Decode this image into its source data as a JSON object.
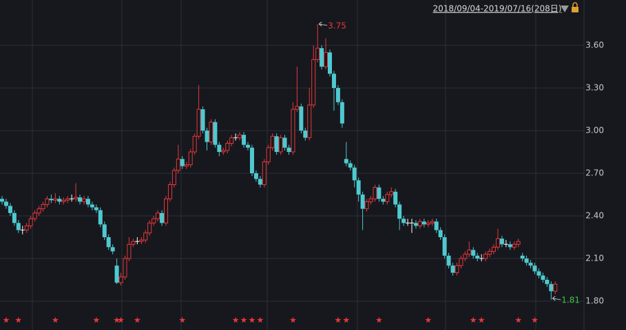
{
  "chart_data": {
    "type": "candlestick",
    "range_label": "2018/09/04-2019/07/16(208日)",
    "up_color": "#e8383d",
    "down_color": "#4fc9d0",
    "flat_color": "#ffffff",
    "grid": true,
    "ylim": [
      1.742,
      3.919
    ],
    "yticks": [
      {
        "value": 1.8,
        "label": "1.80"
      },
      {
        "value": 2.1,
        "label": "2.10"
      },
      {
        "value": 2.4,
        "label": "2.40"
      },
      {
        "value": 2.7,
        "label": "2.70"
      },
      {
        "value": 3.0,
        "label": "3.00"
      },
      {
        "value": 3.3,
        "label": "3.30"
      },
      {
        "value": 3.6,
        "label": "3.60"
      }
    ],
    "annotations": [
      {
        "value": 3.75,
        "color": "#e8383d"
      },
      {
        "value": 1.81,
        "color": "#3cc24a"
      }
    ],
    "star_indices": [
      1,
      4,
      13,
      23,
      28,
      29,
      33,
      44,
      57,
      59,
      61,
      63,
      71,
      82,
      84,
      92,
      104,
      115,
      117,
      126,
      130
    ],
    "candles": [
      [
        2.52,
        2.54,
        2.48,
        2.5
      ],
      [
        2.5,
        2.52,
        2.45,
        2.47
      ],
      [
        2.47,
        2.49,
        2.4,
        2.42
      ],
      [
        2.42,
        2.44,
        2.33,
        2.35
      ],
      [
        2.35,
        2.37,
        2.28,
        2.3
      ],
      [
        2.3,
        2.33,
        2.27,
        2.3
      ],
      [
        2.3,
        2.35,
        2.28,
        2.33
      ],
      [
        2.33,
        2.4,
        2.31,
        2.38
      ],
      [
        2.38,
        2.44,
        2.36,
        2.42
      ],
      [
        2.42,
        2.47,
        2.4,
        2.45
      ],
      [
        2.45,
        2.5,
        2.43,
        2.48
      ],
      [
        2.48,
        2.54,
        2.46,
        2.52
      ],
      [
        2.52,
        2.55,
        2.49,
        2.51
      ],
      [
        2.51,
        2.56,
        2.49,
        2.52
      ],
      [
        2.52,
        2.54,
        2.48,
        2.5
      ],
      [
        2.5,
        2.53,
        2.48,
        2.51
      ],
      [
        2.51,
        2.54,
        2.49,
        2.52
      ],
      [
        2.52,
        2.55,
        2.5,
        2.52
      ],
      [
        2.52,
        2.63,
        2.5,
        2.53
      ],
      [
        2.53,
        2.55,
        2.48,
        2.5
      ],
      [
        2.5,
        2.54,
        2.48,
        2.52
      ],
      [
        2.52,
        2.54,
        2.46,
        2.48
      ],
      [
        2.48,
        2.5,
        2.44,
        2.46
      ],
      [
        2.46,
        2.48,
        2.42,
        2.44
      ],
      [
        2.44,
        2.46,
        2.32,
        2.34
      ],
      [
        2.34,
        2.36,
        2.23,
        2.25
      ],
      [
        2.25,
        2.27,
        2.16,
        2.18
      ],
      [
        2.18,
        2.2,
        2.13,
        2.15
      ],
      [
        2.05,
        2.1,
        1.92,
        1.93
      ],
      [
        1.93,
        2.0,
        1.91,
        1.97
      ],
      [
        1.97,
        2.12,
        1.95,
        2.1
      ],
      [
        2.1,
        2.25,
        2.08,
        2.2
      ],
      [
        2.2,
        2.24,
        2.18,
        2.22
      ],
      [
        2.22,
        2.25,
        2.2,
        2.22
      ],
      [
        2.22,
        2.25,
        2.2,
        2.23
      ],
      [
        2.23,
        2.3,
        2.21,
        2.28
      ],
      [
        2.28,
        2.37,
        2.26,
        2.35
      ],
      [
        2.35,
        2.4,
        2.33,
        2.38
      ],
      [
        2.38,
        2.44,
        2.36,
        2.42
      ],
      [
        2.42,
        2.44,
        2.33,
        2.35
      ],
      [
        2.35,
        2.54,
        2.33,
        2.52
      ],
      [
        2.52,
        2.64,
        2.5,
        2.62
      ],
      [
        2.62,
        2.74,
        2.6,
        2.72
      ],
      [
        2.72,
        2.9,
        2.7,
        2.8
      ],
      [
        2.8,
        2.82,
        2.73,
        2.75
      ],
      [
        2.75,
        2.78,
        2.73,
        2.76
      ],
      [
        2.76,
        2.87,
        2.74,
        2.85
      ],
      [
        2.85,
        2.98,
        2.83,
        2.96
      ],
      [
        2.96,
        3.32,
        2.94,
        3.15
      ],
      [
        3.15,
        3.17,
        2.98,
        3.0
      ],
      [
        3.0,
        3.02,
        2.86,
        2.92
      ],
      [
        2.92,
        3.08,
        2.9,
        3.06
      ],
      [
        3.06,
        3.08,
        2.88,
        2.9
      ],
      [
        2.9,
        2.92,
        2.82,
        2.85
      ],
      [
        2.85,
        2.88,
        2.83,
        2.86
      ],
      [
        2.86,
        2.93,
        2.84,
        2.91
      ],
      [
        2.91,
        2.97,
        2.89,
        2.95
      ],
      [
        2.95,
        2.98,
        2.93,
        2.95
      ],
      [
        2.95,
        2.99,
        2.93,
        2.97
      ],
      [
        2.97,
        2.99,
        2.88,
        2.9
      ],
      [
        2.9,
        2.92,
        2.86,
        2.88
      ],
      [
        2.88,
        2.9,
        2.68,
        2.7
      ],
      [
        2.7,
        2.72,
        2.64,
        2.66
      ],
      [
        2.66,
        2.68,
        2.6,
        2.62
      ],
      [
        2.62,
        2.8,
        2.6,
        2.78
      ],
      [
        2.78,
        2.9,
        2.76,
        2.88
      ],
      [
        2.88,
        2.98,
        2.86,
        2.96
      ],
      [
        2.96,
        2.98,
        2.83,
        2.85
      ],
      [
        2.85,
        2.97,
        2.83,
        2.95
      ],
      [
        2.95,
        2.97,
        2.86,
        2.88
      ],
      [
        2.88,
        2.9,
        2.83,
        2.85
      ],
      [
        2.85,
        3.2,
        2.83,
        3.15
      ],
      [
        3.15,
        3.45,
        3.13,
        3.17
      ],
      [
        3.17,
        3.19,
        2.98,
        3.0
      ],
      [
        3.0,
        3.02,
        2.93,
        2.95
      ],
      [
        2.95,
        3.3,
        2.93,
        3.18
      ],
      [
        3.18,
        3.6,
        3.16,
        3.5
      ],
      [
        3.5,
        3.75,
        3.48,
        3.58
      ],
      [
        3.58,
        3.6,
        3.43,
        3.45
      ],
      [
        3.45,
        3.65,
        3.43,
        3.55
      ],
      [
        3.55,
        3.57,
        3.38,
        3.4
      ],
      [
        3.4,
        3.42,
        3.14,
        3.3
      ],
      [
        3.3,
        3.32,
        3.18,
        3.2
      ],
      [
        3.2,
        3.22,
        3.02,
        3.05
      ],
      [
        2.8,
        2.92,
        2.75,
        2.77
      ],
      [
        2.77,
        2.79,
        2.72,
        2.74
      ],
      [
        2.74,
        2.76,
        2.6,
        2.65
      ],
      [
        2.65,
        2.67,
        2.5,
        2.55
      ],
      [
        2.55,
        2.57,
        2.3,
        2.45
      ],
      [
        2.45,
        2.52,
        2.43,
        2.5
      ],
      [
        2.5,
        2.54,
        2.48,
        2.52
      ],
      [
        2.52,
        2.62,
        2.5,
        2.6
      ],
      [
        2.6,
        2.62,
        2.5,
        2.52
      ],
      [
        2.52,
        2.54,
        2.48,
        2.5
      ],
      [
        2.5,
        2.57,
        2.48,
        2.55
      ],
      [
        2.55,
        2.6,
        2.53,
        2.57
      ],
      [
        2.57,
        2.59,
        2.46,
        2.48
      ],
      [
        2.48,
        2.5,
        2.3,
        2.38
      ],
      [
        2.38,
        2.4,
        2.33,
        2.35
      ],
      [
        2.35,
        2.38,
        2.33,
        2.35
      ],
      [
        2.35,
        2.38,
        2.28,
        2.35
      ],
      [
        2.35,
        2.37,
        2.31,
        2.33
      ],
      [
        2.33,
        2.38,
        2.31,
        2.36
      ],
      [
        2.36,
        2.38,
        2.32,
        2.34
      ],
      [
        2.34,
        2.37,
        2.32,
        2.35
      ],
      [
        2.35,
        2.38,
        2.33,
        2.36
      ],
      [
        2.36,
        2.38,
        2.28,
        2.3
      ],
      [
        2.3,
        2.32,
        2.23,
        2.25
      ],
      [
        2.25,
        2.27,
        2.1,
        2.12
      ],
      [
        2.12,
        2.14,
        2.03,
        2.05
      ],
      [
        2.05,
        2.07,
        1.98,
        2.0
      ],
      [
        2.0,
        2.07,
        1.98,
        2.05
      ],
      [
        2.05,
        2.12,
        2.03,
        2.1
      ],
      [
        2.1,
        2.15,
        2.08,
        2.13
      ],
      [
        2.13,
        2.22,
        2.11,
        2.16
      ],
      [
        2.16,
        2.18,
        2.1,
        2.12
      ],
      [
        2.12,
        2.14,
        2.08,
        2.1
      ],
      [
        2.1,
        2.13,
        2.08,
        2.1
      ],
      [
        2.1,
        2.15,
        2.08,
        2.13
      ],
      [
        2.13,
        2.17,
        2.11,
        2.15
      ],
      [
        2.15,
        2.2,
        2.13,
        2.18
      ],
      [
        2.18,
        2.31,
        2.16,
        2.24
      ],
      [
        2.24,
        2.26,
        2.18,
        2.2
      ],
      [
        2.2,
        2.23,
        2.18,
        2.2
      ],
      [
        2.2,
        2.22,
        2.16,
        2.18
      ],
      [
        2.18,
        2.22,
        2.16,
        2.2
      ],
      [
        2.2,
        2.24,
        2.18,
        2.22
      ],
      [
        2.12,
        2.14,
        2.08,
        2.1
      ],
      [
        2.1,
        2.12,
        2.05,
        2.07
      ],
      [
        2.07,
        2.09,
        2.03,
        2.05
      ],
      [
        2.05,
        2.07,
        1.99,
        2.01
      ],
      [
        2.01,
        2.03,
        1.96,
        1.98
      ],
      [
        1.98,
        2.0,
        1.93,
        1.95
      ],
      [
        1.95,
        1.97,
        1.9,
        1.92
      ],
      [
        1.92,
        1.94,
        1.81,
        1.87
      ],
      [
        1.87,
        1.94,
        1.85,
        1.92
      ]
    ]
  }
}
